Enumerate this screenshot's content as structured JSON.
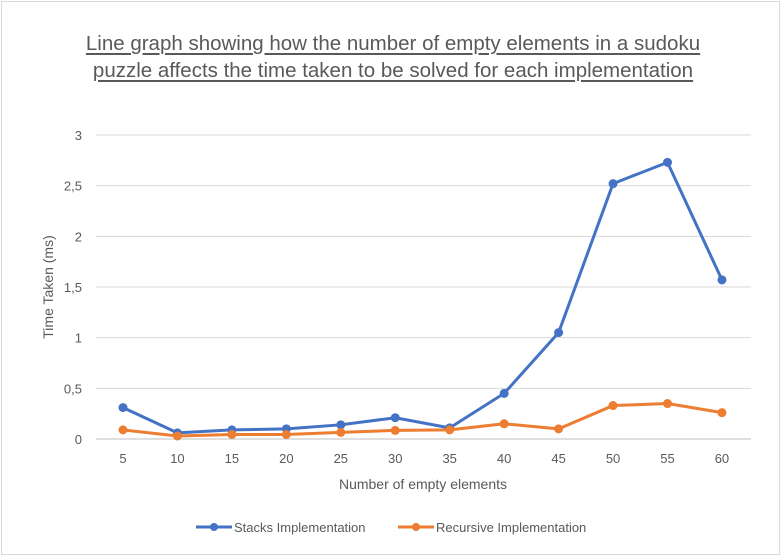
{
  "chart_data": {
    "type": "line",
    "title": "Line graph showing how the number of empty elements in a sudoku puzzle affects the time taken to be solved for each implementation",
    "xlabel": "Number of empty elements",
    "ylabel": "Time Taken (ms)",
    "categories": [
      "5",
      "10",
      "15",
      "20",
      "25",
      "30",
      "35",
      "40",
      "45",
      "50",
      "55",
      "60"
    ],
    "ylim": [
      0,
      3
    ],
    "yticks": [
      0,
      0.5,
      1,
      1.5,
      2,
      2.5,
      3
    ],
    "ytick_labels": [
      "0",
      "0,5",
      "1",
      "1,5",
      "2",
      "2,5",
      "3"
    ],
    "grid": true,
    "legend_position": "bottom",
    "series": [
      {
        "name": "Stacks Implementation",
        "color": "#4472c4",
        "values": [
          0.31,
          0.06,
          0.09,
          0.1,
          0.14,
          0.21,
          0.11,
          0.45,
          1.05,
          2.52,
          2.73,
          1.57
        ]
      },
      {
        "name": "Recursive Implementation",
        "color": "#ed7d31",
        "values": [
          0.09,
          0.03,
          0.045,
          0.045,
          0.065,
          0.085,
          0.09,
          0.15,
          0.1,
          0.33,
          0.35,
          0.26
        ]
      }
    ]
  }
}
